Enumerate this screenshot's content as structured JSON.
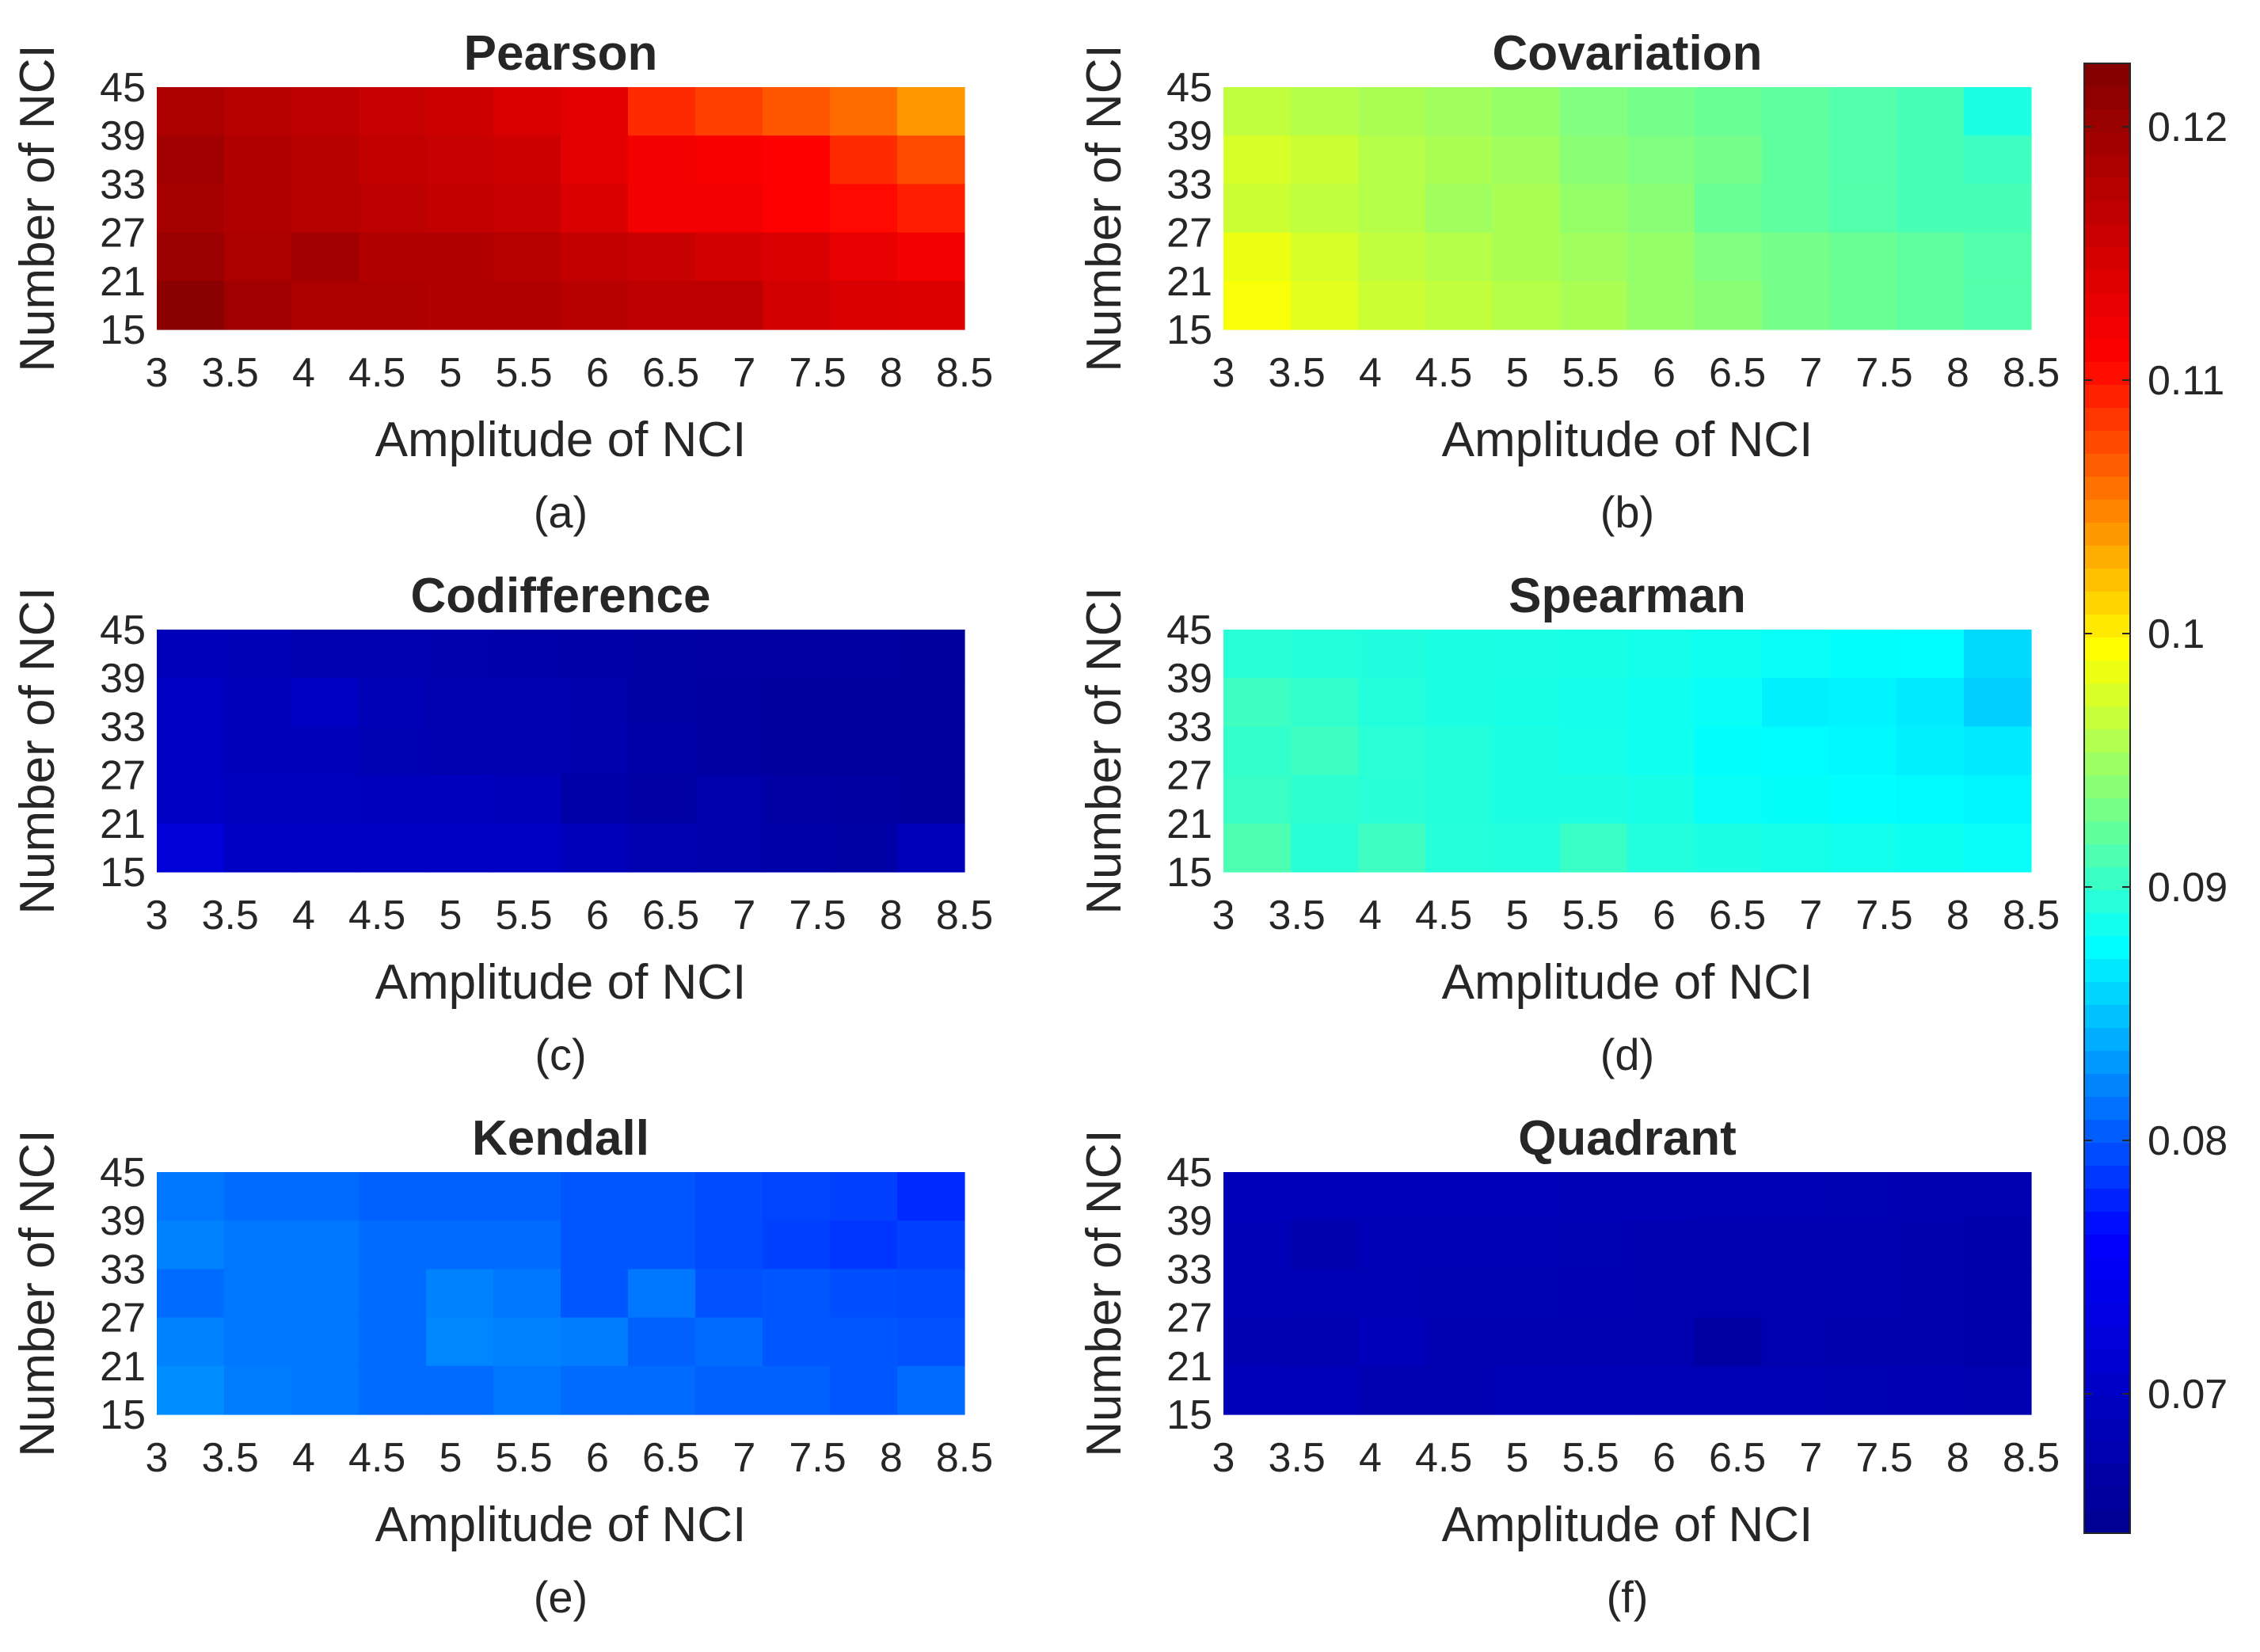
{
  "colormap": [
    "#00008f",
    "#0000ff",
    "#00ffff",
    "#ffff00",
    "#ff0000",
    "#800000"
  ],
  "colorbar": {
    "min": 0.0645,
    "max": 0.1225,
    "ticks": [
      0.07,
      0.08,
      0.09,
      0.1,
      0.11,
      0.12
    ],
    "tick_labels": [
      "0.07",
      "0.08",
      "0.09",
      "0.1",
      "0.11",
      "0.12"
    ]
  },
  "chart_data": [
    {
      "type": "heatmap",
      "title": "Pearson",
      "caption": "(a)",
      "xlabel": "Amplitude of NCI",
      "ylabel": "Number of NCI",
      "x_categories": [
        "3",
        "3.5",
        "4",
        "4.5",
        "5",
        "5.5",
        "6",
        "6.5",
        "7",
        "7.5",
        "8",
        "8.5"
      ],
      "y_categories": [
        "15",
        "21",
        "27",
        "33",
        "39",
        "45"
      ],
      "values_top_to_bottom": [
        [
          0.1185,
          0.1175,
          0.117,
          0.116,
          0.1155,
          0.1145,
          0.1135,
          0.109,
          0.108,
          0.107,
          0.106,
          0.104
        ],
        [
          0.1195,
          0.118,
          0.1175,
          0.1165,
          0.116,
          0.1155,
          0.1135,
          0.112,
          0.1115,
          0.111,
          0.109,
          0.1075
        ],
        [
          0.119,
          0.118,
          0.1175,
          0.117,
          0.1165,
          0.116,
          0.1145,
          0.112,
          0.112,
          0.111,
          0.1105,
          0.1095
        ],
        [
          0.12,
          0.1185,
          0.1195,
          0.118,
          0.118,
          0.1175,
          0.1165,
          0.116,
          0.115,
          0.1145,
          0.113,
          0.112
        ],
        [
          0.1215,
          0.1195,
          0.1185,
          0.1185,
          0.118,
          0.118,
          0.1175,
          0.117,
          0.117,
          0.115,
          0.1145,
          0.114
        ]
      ]
    },
    {
      "type": "heatmap",
      "title": "Covariation",
      "caption": "(b)",
      "xlabel": "Amplitude of NCI",
      "ylabel": "Number of NCI",
      "x_categories": [
        "3",
        "3.5",
        "4",
        "4.5",
        "5",
        "5.5",
        "6",
        "6.5",
        "7",
        "7.5",
        "8",
        "8.5"
      ],
      "y_categories": [
        "15",
        "21",
        "27",
        "33",
        "39",
        "45"
      ],
      "values_top_to_bottom": [
        [
          0.0965,
          0.096,
          0.0955,
          0.095,
          0.0945,
          0.0935,
          0.093,
          0.0925,
          0.092,
          0.0915,
          0.091,
          0.089
        ],
        [
          0.0975,
          0.097,
          0.096,
          0.0955,
          0.095,
          0.094,
          0.0935,
          0.093,
          0.092,
          0.0915,
          0.091,
          0.0905
        ],
        [
          0.097,
          0.0965,
          0.096,
          0.095,
          0.0955,
          0.0945,
          0.094,
          0.0925,
          0.092,
          0.0915,
          0.091,
          0.091
        ],
        [
          0.0985,
          0.0975,
          0.0965,
          0.096,
          0.0955,
          0.095,
          0.0945,
          0.0935,
          0.093,
          0.0925,
          0.092,
          0.0915
        ],
        [
          0.099,
          0.098,
          0.097,
          0.0965,
          0.096,
          0.0955,
          0.0945,
          0.094,
          0.093,
          0.0925,
          0.092,
          0.0915
        ]
      ]
    },
    {
      "type": "heatmap",
      "title": "Codifference",
      "caption": "(c)",
      "xlabel": "Amplitude of NCI",
      "ylabel": "Number of NCI",
      "x_categories": [
        "3",
        "3.5",
        "4",
        "4.5",
        "5",
        "5.5",
        "6",
        "6.5",
        "7",
        "7.5",
        "8",
        "8.5"
      ],
      "y_categories": [
        "15",
        "21",
        "27",
        "33",
        "39",
        "45"
      ],
      "values_top_to_bottom": [
        [
          0.069,
          0.0685,
          0.068,
          0.0678,
          0.0676,
          0.0674,
          0.0672,
          0.067,
          0.0668,
          0.0666,
          0.0664,
          0.0662
        ],
        [
          0.07,
          0.069,
          0.07,
          0.0685,
          0.068,
          0.068,
          0.0675,
          0.067,
          0.0665,
          0.0662,
          0.066,
          0.0658
        ],
        [
          0.07,
          0.069,
          0.069,
          0.0682,
          0.0678,
          0.068,
          0.0675,
          0.0672,
          0.0665,
          0.0662,
          0.066,
          0.0658
        ],
        [
          0.07,
          0.0695,
          0.0695,
          0.0692,
          0.0692,
          0.069,
          0.0672,
          0.0668,
          0.0675,
          0.0668,
          0.0665,
          0.0662
        ],
        [
          0.072,
          0.07,
          0.07,
          0.0698,
          0.0698,
          0.0698,
          0.069,
          0.068,
          0.0675,
          0.0672,
          0.067,
          0.069
        ]
      ]
    },
    {
      "type": "heatmap",
      "title": "Spearman",
      "caption": "(d)",
      "xlabel": "Amplitude of NCI",
      "ylabel": "Number of NCI",
      "x_categories": [
        "3",
        "3.5",
        "4",
        "4.5",
        "5",
        "5.5",
        "6",
        "6.5",
        "7",
        "7.5",
        "8",
        "8.5"
      ],
      "y_categories": [
        "15",
        "21",
        "27",
        "33",
        "39",
        "45"
      ],
      "values_top_to_bottom": [
        [
          0.0895,
          0.0893,
          0.0891,
          0.089,
          0.0889,
          0.0888,
          0.0886,
          0.0884,
          0.088,
          0.0878,
          0.0876,
          0.086
        ],
        [
          0.0905,
          0.09,
          0.0893,
          0.089,
          0.0888,
          0.0886,
          0.0884,
          0.088,
          0.087,
          0.0872,
          0.0868,
          0.0855
        ],
        [
          0.09,
          0.0905,
          0.0896,
          0.0893,
          0.089,
          0.0887,
          0.0884,
          0.0878,
          0.0876,
          0.0874,
          0.087,
          0.0868
        ],
        [
          0.0903,
          0.0898,
          0.0895,
          0.0893,
          0.089,
          0.089,
          0.0888,
          0.088,
          0.0879,
          0.0877,
          0.0875,
          0.0873
        ],
        [
          0.0912,
          0.0895,
          0.0905,
          0.0894,
          0.0892,
          0.0903,
          0.0892,
          0.089,
          0.0887,
          0.0885,
          0.0883,
          0.088
        ]
      ]
    },
    {
      "type": "heatmap",
      "title": "Kendall",
      "caption": "(e)",
      "xlabel": "Amplitude of NCI",
      "ylabel": "Number of NCI",
      "x_categories": [
        "3",
        "3.5",
        "4",
        "4.5",
        "5",
        "5.5",
        "6",
        "6.5",
        "7",
        "7.5",
        "8",
        "8.5"
      ],
      "y_categories": [
        "15",
        "21",
        "27",
        "33",
        "39",
        "45"
      ],
      "values_top_to_bottom": [
        [
          0.0815,
          0.081,
          0.081,
          0.0805,
          0.0805,
          0.0805,
          0.08,
          0.08,
          0.0795,
          0.0792,
          0.079,
          0.078
        ],
        [
          0.082,
          0.0815,
          0.0815,
          0.081,
          0.081,
          0.081,
          0.08,
          0.08,
          0.0795,
          0.079,
          0.0785,
          0.079
        ],
        [
          0.081,
          0.0815,
          0.0815,
          0.081,
          0.082,
          0.0815,
          0.08,
          0.0815,
          0.0798,
          0.08,
          0.0797,
          0.0795
        ],
        [
          0.082,
          0.0815,
          0.0815,
          0.081,
          0.0822,
          0.082,
          0.0818,
          0.0805,
          0.081,
          0.08,
          0.08,
          0.0798
        ],
        [
          0.0825,
          0.0818,
          0.0815,
          0.081,
          0.081,
          0.0815,
          0.081,
          0.081,
          0.0805,
          0.0805,
          0.08,
          0.081
        ]
      ]
    },
    {
      "type": "heatmap",
      "title": "Quadrant",
      "caption": "(f)",
      "xlabel": "Amplitude of NCI",
      "ylabel": "Number of NCI",
      "x_categories": [
        "3",
        "3.5",
        "4",
        "4.5",
        "5",
        "5.5",
        "6",
        "6.5",
        "7",
        "7.5",
        "8",
        "8.5"
      ],
      "y_categories": [
        "15",
        "21",
        "27",
        "33",
        "39",
        "45"
      ],
      "values_top_to_bottom": [
        [
          0.069,
          0.0688,
          0.0688,
          0.0687,
          0.0687,
          0.0686,
          0.0685,
          0.0684,
          0.0683,
          0.0682,
          0.068,
          0.0678
        ],
        [
          0.0685,
          0.0675,
          0.0685,
          0.0684,
          0.0684,
          0.0682,
          0.068,
          0.068,
          0.0679,
          0.0678,
          0.0675,
          0.0673
        ],
        [
          0.0685,
          0.0683,
          0.0683,
          0.0682,
          0.0682,
          0.0681,
          0.068,
          0.068,
          0.0678,
          0.0678,
          0.0676,
          0.0674
        ],
        [
          0.068,
          0.0678,
          0.069,
          0.068,
          0.068,
          0.0679,
          0.0678,
          0.0665,
          0.0677,
          0.0676,
          0.0675,
          0.0673
        ],
        [
          0.069,
          0.0688,
          0.068,
          0.068,
          0.0685,
          0.0685,
          0.0684,
          0.0684,
          0.0683,
          0.0682,
          0.0681,
          0.068
        ]
      ]
    }
  ]
}
